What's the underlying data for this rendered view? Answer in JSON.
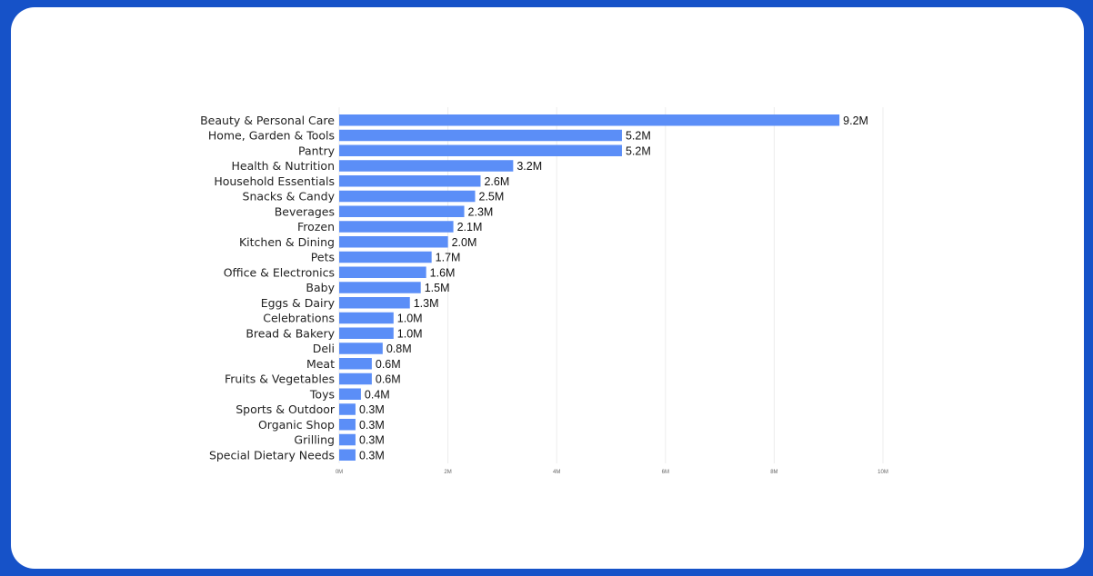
{
  "chart_data": {
    "type": "bar",
    "orientation": "horizontal",
    "title": "",
    "xlabel": "",
    "ylabel": "",
    "categories": [
      "Beauty & Personal Care",
      "Home, Garden & Tools",
      "Pantry",
      "Health & Nutrition",
      "Household Essentials",
      "Snacks & Candy",
      "Beverages",
      "Frozen",
      "Kitchen & Dining",
      "Pets",
      "Office & Electronics",
      "Baby",
      "Eggs & Dairy",
      "Celebrations",
      "Bread & Bakery",
      "Deli",
      "Meat",
      "Fruits & Vegetables",
      "Toys",
      "Sports & Outdoor",
      "Organic Shop",
      "Grilling",
      "Special Dietary Needs"
    ],
    "values": [
      9.2,
      5.2,
      5.2,
      3.2,
      2.6,
      2.5,
      2.3,
      2.1,
      2.0,
      1.7,
      1.6,
      1.5,
      1.3,
      1.0,
      1.0,
      0.8,
      0.6,
      0.6,
      0.4,
      0.3,
      0.3,
      0.3,
      0.3
    ],
    "labels": [
      "9.2M",
      "5.2M",
      "5.2M",
      "3.2M",
      "2.6M",
      "2.5M",
      "2.3M",
      "2.1M",
      "2.0M",
      "1.7M",
      "1.6M",
      "1.5M",
      "1.3M",
      "1.0M",
      "1.0M",
      "0.8M",
      "0.6M",
      "0.6M",
      "0.4M",
      "0.3M",
      "0.3M",
      "0.3M",
      "0.3M"
    ],
    "xticks": [
      0,
      2,
      4,
      6,
      8,
      10
    ],
    "xtick_labels": [
      "0M",
      "2M",
      "4M",
      "6M",
      "8M",
      "10M"
    ],
    "xlim": [
      0,
      10
    ],
    "grid": true,
    "bar_color": "#5b8ef7"
  }
}
